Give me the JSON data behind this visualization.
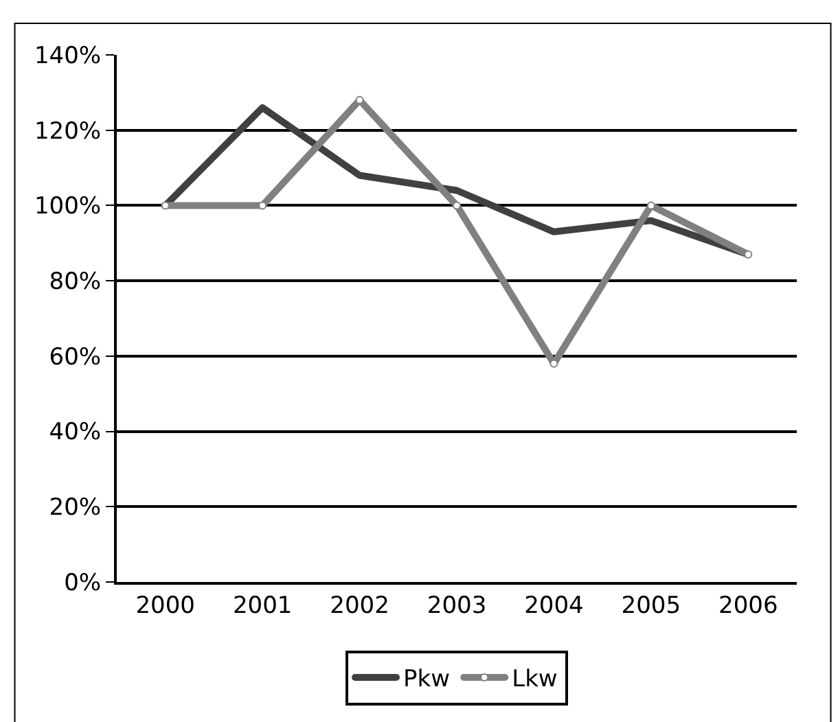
{
  "chart_data": {
    "type": "line",
    "categories": [
      "2000",
      "2001",
      "2002",
      "2003",
      "2004",
      "2005",
      "2006"
    ],
    "series": [
      {
        "name": "Pkw",
        "color": "#404040",
        "values": [
          1.0,
          1.26,
          1.08,
          1.04,
          0.93,
          0.96,
          0.87
        ],
        "marker": "none"
      },
      {
        "name": "Lkw",
        "color": "#808080",
        "values": [
          1.0,
          1.0,
          1.28,
          1.0,
          0.58,
          1.0,
          0.87
        ],
        "marker": "circle"
      }
    ],
    "ylim": [
      0,
      1.4
    ],
    "yticks": [
      {
        "value": 0,
        "label": "0%"
      },
      {
        "value": 0.2,
        "label": "20%"
      },
      {
        "value": 0.4,
        "label": "40%"
      },
      {
        "value": 0.6,
        "label": "60%"
      },
      {
        "value": 0.8,
        "label": "80%"
      },
      {
        "value": 1.0,
        "label": "100%"
      },
      {
        "value": 1.2,
        "label": "120%"
      },
      {
        "value": 1.4,
        "label": "140%"
      }
    ],
    "grid": "y",
    "legend": "bottom",
    "line_style": "solid"
  }
}
